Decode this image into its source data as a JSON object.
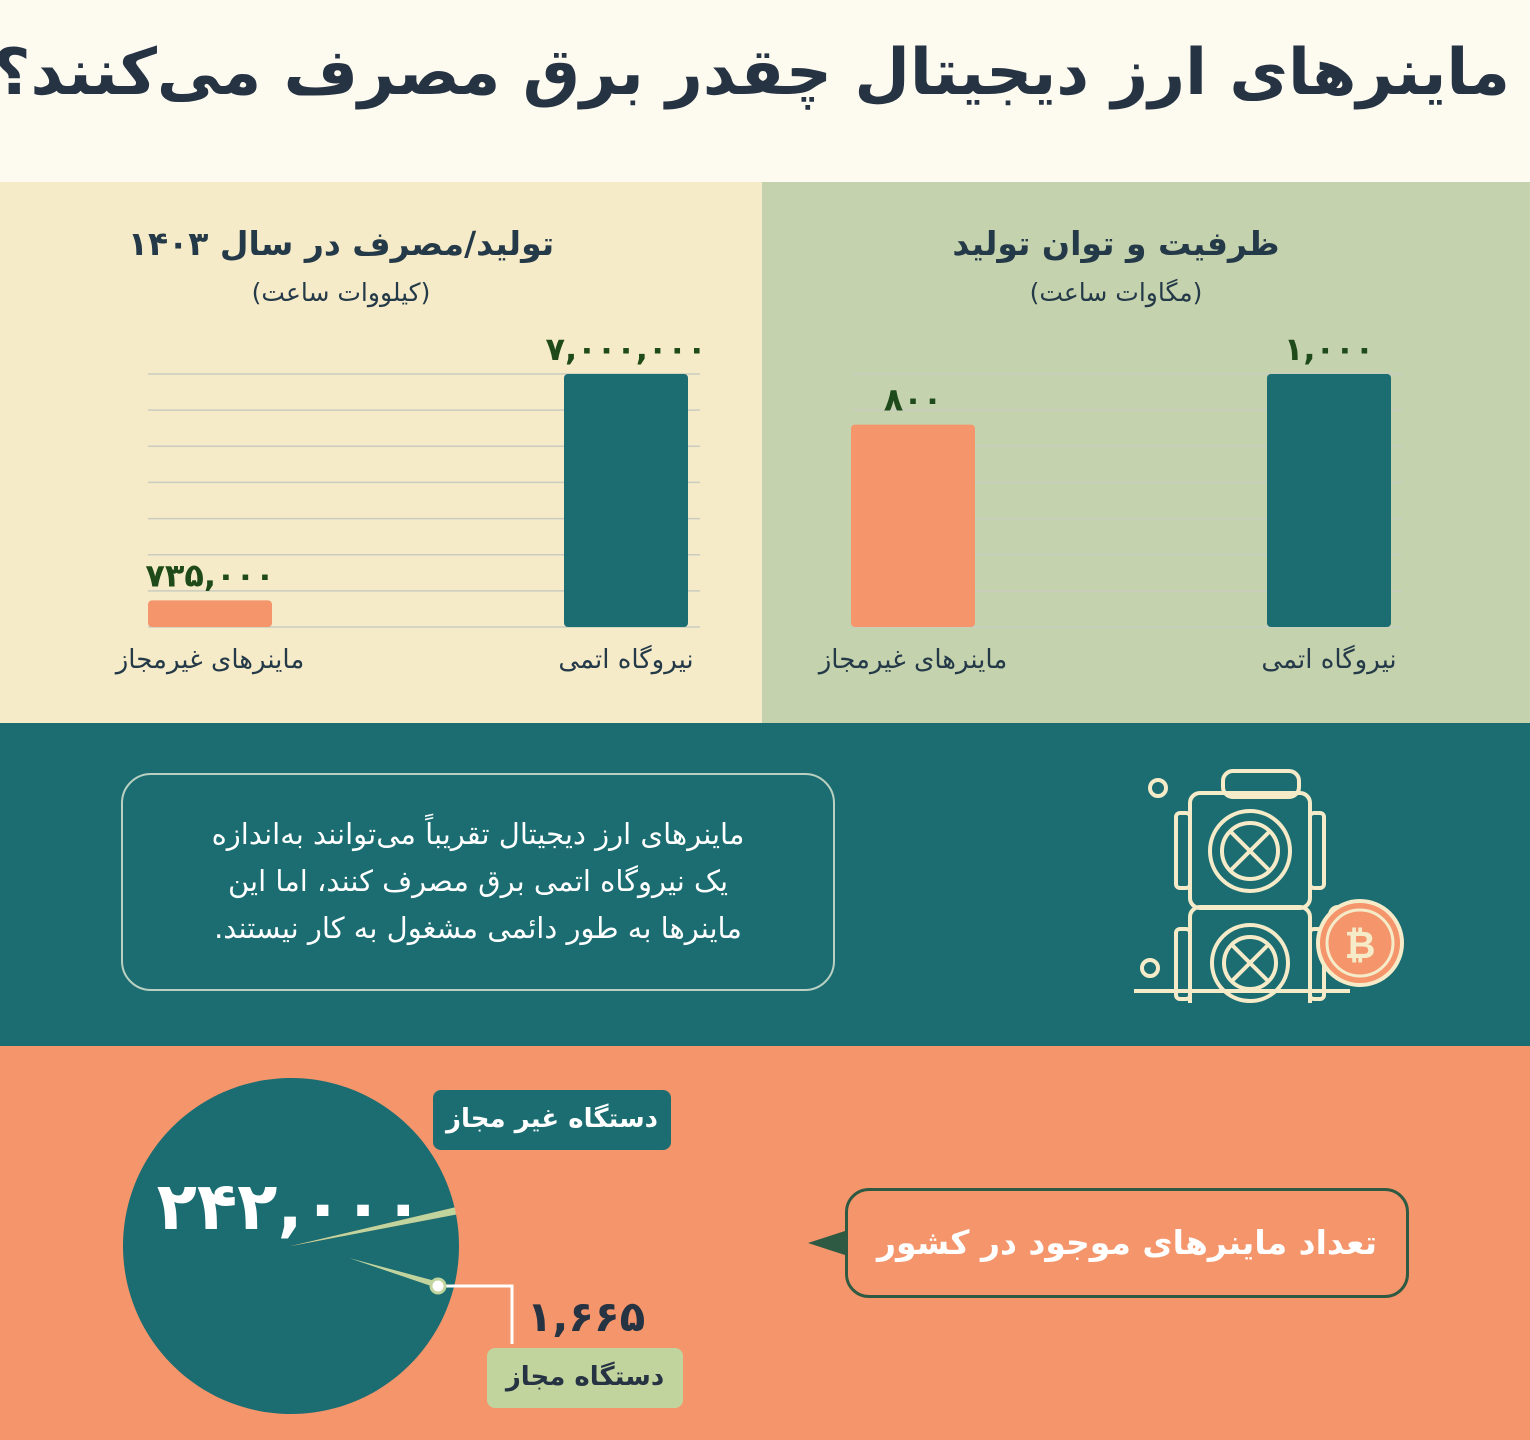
{
  "title": "ماینرهای ارز دیجیتال چقدر برق مصرف می‌کنند؟",
  "colors": {
    "teal": "#1b6d71",
    "orange": "#f4956b",
    "cream": "#f6ebc8",
    "sage": "#c5d2ae",
    "label_green": "#1f4a19"
  },
  "chart_data": [
    {
      "type": "bar",
      "title": "تولید/مصرف در سال ۱۴۰۳",
      "subtitle": "(کیلووات ساعت)",
      "categories": [
        "نیروگاه اتمی",
        "ماینرهای غیرمجاز"
      ],
      "values": [
        7000000,
        735000
      ],
      "value_labels": [
        "۷,۰۰۰,۰۰۰",
        "۷۳۵,۰۰۰"
      ],
      "colors": [
        "#1b6d71",
        "#f4956b"
      ],
      "ylim": [
        0,
        7000000
      ],
      "grid": true
    },
    {
      "type": "bar",
      "title": "ظرفیت و توان تولید",
      "subtitle": "(مگاوات ساعت)",
      "categories": [
        "نیروگاه اتمی",
        "ماینرهای غیرمجاز"
      ],
      "values": [
        1000,
        800
      ],
      "value_labels": [
        "۱,۰۰۰",
        "۸۰۰"
      ],
      "colors": [
        "#1b6d71",
        "#f4956b"
      ],
      "ylim": [
        0,
        1000
      ],
      "grid": true
    },
    {
      "type": "pie",
      "title": "تعداد ماینرهای موجود در کشور",
      "categories": [
        "دستگاه غیر مجاز",
        "دستگاه مجاز"
      ],
      "values": [
        242000,
        1665
      ],
      "value_labels": [
        "۲۴۲,۰۰۰",
        "۱,۶۶۵"
      ],
      "colors": [
        "#1b6d71",
        "#c2d49e"
      ]
    }
  ],
  "note": {
    "lines": [
      "ماینرهای ارز دیجیتال تقریباً  می‌توانند به‌اندازه",
      "یک نیروگاه اتمی برق مصرف کنند، اما این",
      "ماینرها به طور دائمی مشغول به کار نیستند."
    ]
  },
  "icons": {
    "miner": "crypto-miner-icon",
    "bitcoin": "bitcoin-icon"
  }
}
